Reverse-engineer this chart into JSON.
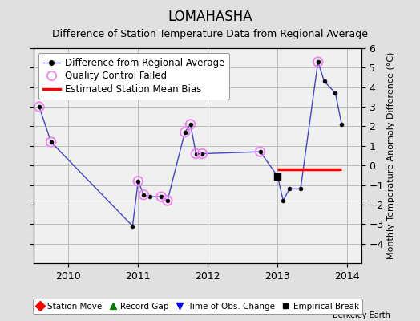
{
  "title": "LOMAHASHA",
  "subtitle": "Difference of Station Temperature Data from Regional Average",
  "ylabel": "Monthly Temperature Anomaly Difference (°C)",
  "xlim": [
    2009.5,
    2014.2
  ],
  "ylim": [
    -5,
    6
  ],
  "yticks": [
    -4,
    -3,
    -2,
    -1,
    0,
    1,
    2,
    3,
    4,
    5,
    6
  ],
  "xticks": [
    2010,
    2011,
    2012,
    2013,
    2014
  ],
  "background_color": "#e0e0e0",
  "plot_bg_color": "#f0f0f0",
  "line_color": "#4444cc",
  "line_data_x": [
    2009.58,
    2009.75,
    2010.92,
    2011.0,
    2011.08,
    2011.17,
    2011.33,
    2011.42,
    2011.67,
    2011.75,
    2011.83,
    2011.92,
    2012.75,
    2013.0,
    2013.08,
    2013.17,
    2013.33,
    2013.58,
    2013.67,
    2013.83,
    2013.92
  ],
  "line_data_y": [
    3.0,
    1.2,
    -3.1,
    -0.8,
    -1.5,
    -1.6,
    -1.6,
    -1.8,
    1.7,
    2.1,
    0.6,
    0.6,
    0.7,
    -0.55,
    -1.8,
    -1.2,
    -1.2,
    5.3,
    4.3,
    3.7,
    2.1
  ],
  "qc_failed_x": [
    2009.58,
    2009.75,
    2011.0,
    2011.08,
    2011.33,
    2011.42,
    2011.67,
    2011.75,
    2011.83,
    2011.92,
    2012.75,
    2013.58
  ],
  "qc_failed_y": [
    3.0,
    1.2,
    -0.8,
    -1.5,
    -1.6,
    -1.8,
    1.7,
    2.1,
    0.6,
    0.6,
    0.7,
    5.3
  ],
  "bias_line_x_start": 2013.0,
  "bias_line_x_end": 2013.92,
  "bias_line_y": -0.18,
  "empirical_break_x": 2013.0,
  "empirical_break_y": -0.55,
  "grid_color": "#bbbbbb",
  "title_fontsize": 12,
  "subtitle_fontsize": 9,
  "tick_fontsize": 9,
  "ylabel_fontsize": 8,
  "legend_fontsize": 8.5
}
